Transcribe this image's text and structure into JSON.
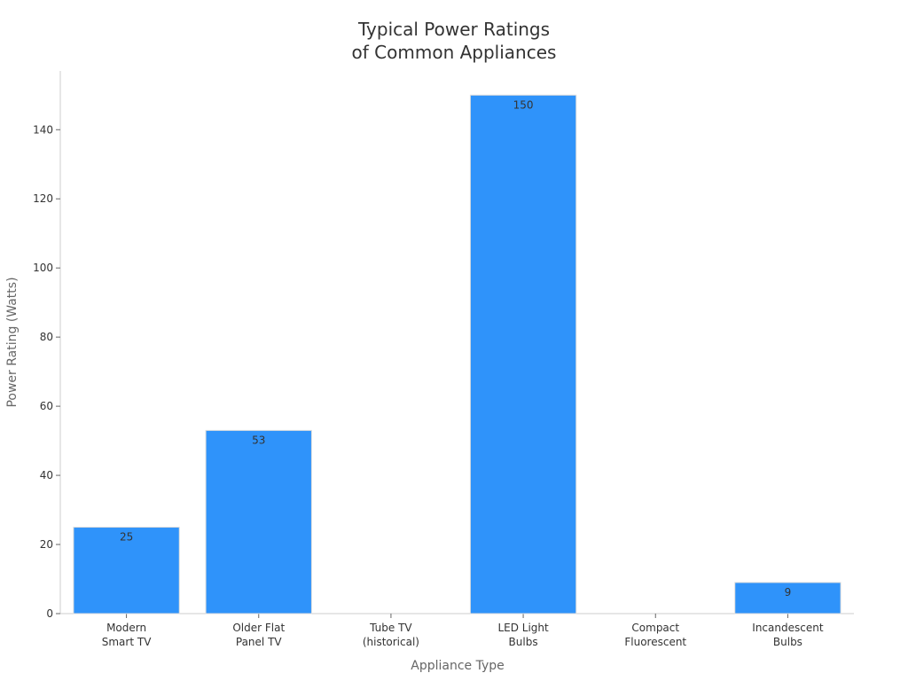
{
  "chart_data": {
    "type": "bar",
    "title": [
      "Typical Power Ratings",
      "of Common Appliances"
    ],
    "xlabel": "Appliance Type",
    "ylabel": "Power Rating (Watts)",
    "categories": [
      [
        "Modern",
        "Smart TV"
      ],
      [
        "Older Flat",
        "Panel TV"
      ],
      [
        "Tube TV",
        "(historical)"
      ],
      [
        "LED Light",
        "Bulbs"
      ],
      [
        "Compact",
        "Fluorescent"
      ],
      [
        "Incandescent",
        "Bulbs"
      ]
    ],
    "values": [
      25,
      53,
      null,
      150,
      null,
      9
    ],
    "data_labels": [
      "25",
      "53",
      "",
      "150",
      "",
      "9"
    ],
    "ylim": [
      0,
      157
    ],
    "yticks": [
      0,
      20,
      40,
      60,
      80,
      100,
      120,
      140
    ],
    "grid": false,
    "bar_color": "#2f93fa"
  }
}
